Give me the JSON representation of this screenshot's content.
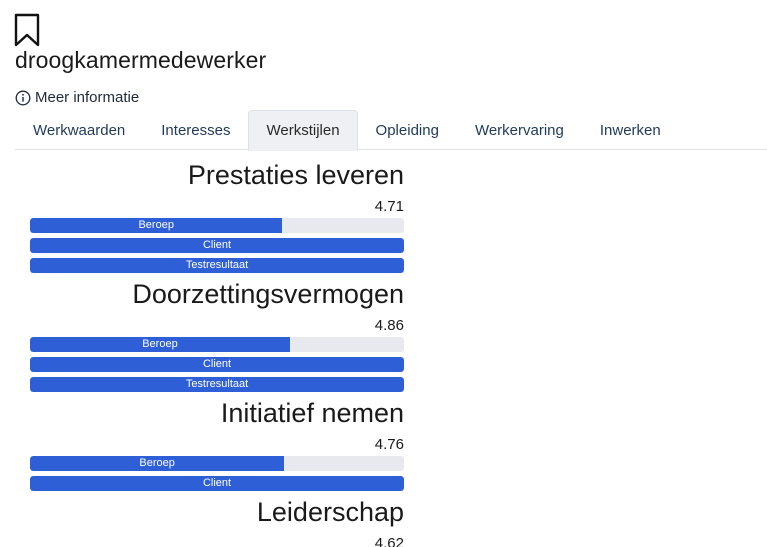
{
  "header": {
    "title": "droogkamermedewerker",
    "more_info": "Meer informatie"
  },
  "tabs": [
    {
      "label": "Werkwaarden"
    },
    {
      "label": "Interesses"
    },
    {
      "label": "Werkstijlen"
    },
    {
      "label": "Opleiding"
    },
    {
      "label": "Werkervaring"
    },
    {
      "label": "Inwerken"
    }
  ],
  "active_tab": "Werkstijlen",
  "colors": {
    "bar_fill": "#2f5fd6",
    "bar_track": "#e8e9ee"
  },
  "sections": [
    {
      "title": "Prestaties leveren",
      "score": "4.71",
      "bars": [
        {
          "label": "Beroep",
          "percent": 67.5
        },
        {
          "label": "Client",
          "percent": 100
        },
        {
          "label": "Testresultaat",
          "percent": 100
        }
      ]
    },
    {
      "title": "Doorzettingsvermogen",
      "score": "4.86",
      "bars": [
        {
          "label": "Beroep",
          "percent": 69.5
        },
        {
          "label": "Client",
          "percent": 100
        },
        {
          "label": "Testresultaat",
          "percent": 100
        }
      ]
    },
    {
      "title": "Initiatief nemen",
      "score": "4.76",
      "bars": [
        {
          "label": "Beroep",
          "percent": 68
        },
        {
          "label": "Client",
          "percent": 100
        }
      ]
    },
    {
      "title": "Leiderschap",
      "score": "4.62",
      "bars": []
    }
  ]
}
